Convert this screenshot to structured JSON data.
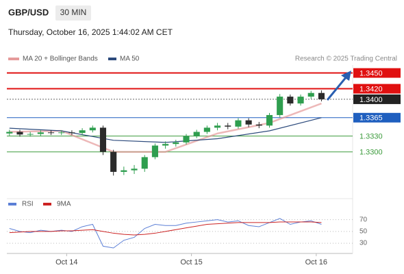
{
  "chart_data": [
    {
      "type": "candlestick",
      "title": "GBP/USD",
      "timeframe": "30 MIN",
      "subtitle": "Thursday, October 16, 2025 1:44:02 AM CET",
      "source": "Research © 2025 Trading Central",
      "x": [
        0,
        2,
        4,
        6,
        8,
        10,
        12,
        14,
        16,
        18,
        20,
        22,
        24,
        26,
        28,
        30,
        32,
        34,
        36,
        38,
        40,
        42,
        44,
        46,
        48,
        50,
        52,
        54,
        56,
        58,
        60
      ],
      "open": [
        1.3335,
        1.3338,
        1.3333,
        1.3334,
        1.3337,
        1.3336,
        1.3337,
        1.3336,
        1.3341,
        1.3346,
        1.33,
        1.3262,
        1.3265,
        1.3268,
        1.329,
        1.3312,
        1.3315,
        1.3318,
        1.333,
        1.3338,
        1.3346,
        1.335,
        1.3348,
        1.336,
        1.3352,
        1.335,
        1.337,
        1.3405,
        1.3392,
        1.3405,
        1.3412
      ],
      "high": [
        1.3342,
        1.3342,
        1.3338,
        1.3341,
        1.3341,
        1.3341,
        1.3341,
        1.3345,
        1.335,
        1.335,
        1.3304,
        1.3272,
        1.3275,
        1.3294,
        1.3316,
        1.332,
        1.3323,
        1.3334,
        1.3342,
        1.335,
        1.3355,
        1.3355,
        1.3364,
        1.3364,
        1.3357,
        1.3374,
        1.341,
        1.3409,
        1.3409,
        1.3416,
        1.3417
      ],
      "low": [
        1.3331,
        1.3329,
        1.3329,
        1.333,
        1.3332,
        1.3332,
        1.3332,
        1.3332,
        1.3337,
        1.3294,
        1.3255,
        1.3256,
        1.3258,
        1.3262,
        1.3286,
        1.3306,
        1.331,
        1.3314,
        1.3326,
        1.3334,
        1.3341,
        1.3343,
        1.3344,
        1.3347,
        1.3345,
        1.3346,
        1.3366,
        1.3388,
        1.3388,
        1.3401,
        1.3396
      ],
      "close": [
        1.3338,
        1.3333,
        1.3334,
        1.3337,
        1.3336,
        1.3337,
        1.3336,
        1.3341,
        1.3346,
        1.33,
        1.3262,
        1.3265,
        1.3268,
        1.329,
        1.3312,
        1.3315,
        1.3318,
        1.333,
        1.3338,
        1.3346,
        1.335,
        1.3348,
        1.336,
        1.3352,
        1.335,
        1.337,
        1.3405,
        1.3392,
        1.3405,
        1.3412,
        1.34
      ],
      "up_color": "#2f9e4f",
      "down_color": "#2b2b2b",
      "series": [
        {
          "name": "MA 20 + Bollinger Bands",
          "color": "#e59a9a",
          "x": [
            0,
            10,
            20,
            30,
            40,
            50,
            60
          ],
          "values": [
            1.3338,
            1.334,
            1.33,
            1.33,
            1.3335,
            1.3355,
            1.3392
          ]
        },
        {
          "name": "MA 50",
          "color": "#2c4a7c",
          "x": [
            0,
            10,
            20,
            30,
            40,
            50,
            60
          ],
          "values": [
            1.3345,
            1.334,
            1.3322,
            1.3318,
            1.3325,
            1.334,
            1.3365
          ]
        }
      ],
      "levels": [
        {
          "value": 1.345,
          "label": "1.3450",
          "color": "#e01010",
          "boxed": true,
          "style": "solid"
        },
        {
          "value": 1.342,
          "label": "1.3420",
          "color": "#e01010",
          "boxed": true,
          "style": "solid"
        },
        {
          "value": 1.34,
          "label": "1.3400",
          "color": "#222222",
          "boxed": true,
          "style": "dotted"
        },
        {
          "value": 1.3365,
          "label": "1.3365",
          "color": "#1f5fbf",
          "boxed": true,
          "style": "solid"
        },
        {
          "value": 1.333,
          "label": "1.3330",
          "color": "#3a9a3a",
          "boxed": false,
          "style": "solid"
        },
        {
          "value": 1.33,
          "label": "1.3300",
          "color": "#3a9a3a",
          "boxed": false,
          "style": "solid"
        }
      ],
      "xlim": [
        -0.5,
        66
      ],
      "ylim": [
        1.3215,
        1.3465
      ],
      "xticks": [
        {
          "value": 11,
          "label": "Oct 14"
        },
        {
          "value": 35,
          "label": "Oct 15"
        },
        {
          "value": 59,
          "label": "Oct 16"
        }
      ]
    },
    {
      "type": "line",
      "x": [
        0,
        2,
        4,
        6,
        8,
        10,
        12,
        14,
        16,
        18,
        20,
        22,
        24,
        26,
        28,
        30,
        32,
        34,
        36,
        38,
        40,
        42,
        44,
        46,
        48,
        50,
        52,
        54,
        56,
        58,
        60
      ],
      "series": [
        {
          "name": "RSI",
          "color": "#5b7fd6",
          "values": [
            55,
            50,
            48,
            52,
            50,
            52,
            50,
            58,
            62,
            25,
            22,
            35,
            40,
            55,
            62,
            60,
            60,
            64,
            66,
            68,
            70,
            66,
            68,
            60,
            58,
            65,
            72,
            62,
            66,
            68,
            62
          ]
        },
        {
          "name": "9MA",
          "color": "#cc2222",
          "values": [
            48,
            49,
            50,
            50,
            50,
            51,
            51,
            52,
            53,
            50,
            47,
            45,
            44,
            45,
            47,
            50,
            53,
            56,
            59,
            62,
            63,
            64,
            65,
            65,
            65,
            65,
            66,
            66,
            66,
            66,
            65
          ]
        }
      ],
      "xlim": [
        -0.5,
        66
      ],
      "ylim": [
        15,
        80
      ],
      "yticks": [
        30,
        50,
        70
      ]
    }
  ]
}
